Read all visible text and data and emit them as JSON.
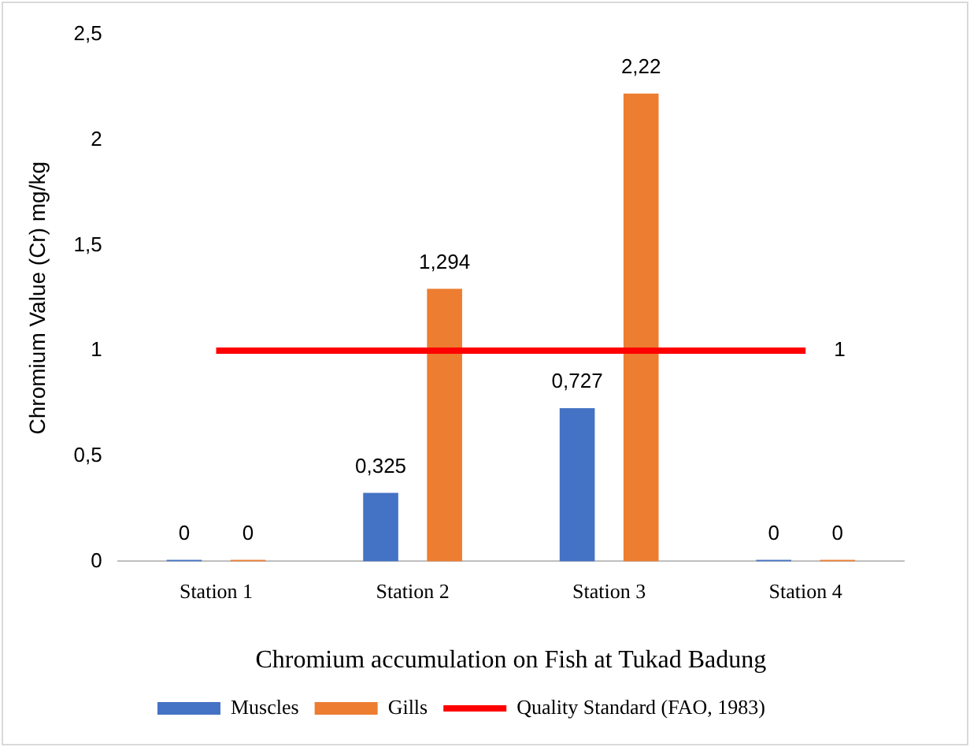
{
  "chart_data": {
    "type": "bar",
    "xlabel": "Chromium accumulation on Fish at Tukad Badung",
    "ylabel": "Chromium Value (Cr) mg/kg",
    "categories": [
      "Station 1",
      "Station 2",
      "Station 3",
      "Station 4"
    ],
    "series": [
      {
        "name": "Muscles",
        "color": "#4472c4",
        "values": [
          0,
          0.325,
          0.727,
          0
        ],
        "value_labels": [
          "0",
          "0,325",
          "0,727",
          "0"
        ]
      },
      {
        "name": "Gills",
        "color": "#ed7d31",
        "values": [
          0,
          1.294,
          2.22,
          0
        ],
        "value_labels": [
          "0",
          "1,294",
          "2,22",
          "0"
        ]
      },
      {
        "name": "Quality Standard (FAO, 1983)",
        "type": "line",
        "color": "#ff0000",
        "marker": "none",
        "line_style": "solid",
        "values": [
          1,
          1,
          1,
          1
        ],
        "value_labels": [
          null,
          null,
          null,
          "1"
        ]
      }
    ],
    "ylim": [
      0,
      2.5
    ],
    "yticks": [
      0,
      {
        "value": 0.5,
        "label": "0,5"
      },
      1,
      {
        "value": 1.5,
        "label": "1,5"
      },
      2,
      {
        "value": 2.5,
        "label": "2,5"
      }
    ],
    "grid": false,
    "legend": "bottom"
  }
}
